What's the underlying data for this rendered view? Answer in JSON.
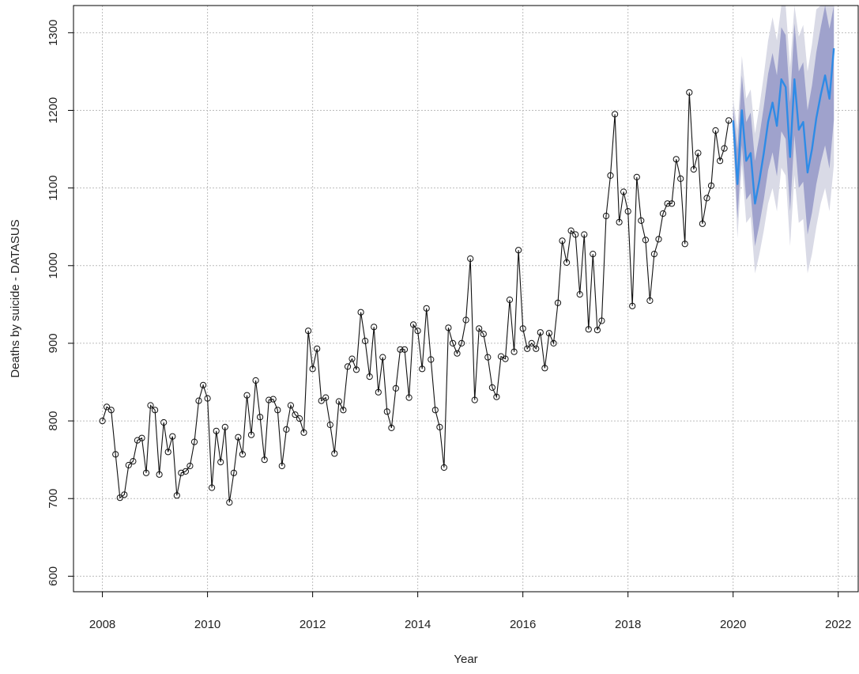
{
  "chart_data": {
    "type": "line",
    "title": "",
    "xlabel": "Year",
    "ylabel": "Deaths by suicide - DATASUS",
    "xlim": [
      2007.45,
      2022.38
    ],
    "ylim": [
      580,
      1335
    ],
    "x_ticks": [
      2008,
      2010,
      2012,
      2014,
      2016,
      2018,
      2020,
      2022
    ],
    "y_ticks": [
      600,
      700,
      800,
      900,
      1000,
      1100,
      1200,
      1300
    ],
    "x_tick_labels": [
      "2008",
      "2010",
      "2012",
      "2014",
      "2016",
      "2018",
      "2020",
      "2022"
    ],
    "y_tick_labels": [
      "600",
      "700",
      "800",
      "900",
      "1000",
      "1100",
      "1200",
      "1300"
    ],
    "grid": true,
    "legend": "none",
    "observed": {
      "start": 2008.0,
      "step": 0.08333333,
      "values": [
        800,
        818,
        814,
        757,
        701,
        705,
        743,
        748,
        775,
        778,
        733,
        820,
        814,
        731,
        798,
        760,
        780,
        704,
        733,
        735,
        742,
        773,
        826,
        846,
        829,
        714,
        787,
        747,
        792,
        695,
        733,
        779,
        757,
        833,
        782,
        852,
        805,
        750,
        827,
        828,
        814,
        742,
        789,
        820,
        808,
        803,
        785,
        916,
        867,
        893,
        826,
        830,
        795,
        758,
        825,
        814,
        870,
        880,
        866,
        940,
        903,
        857,
        921,
        837,
        882,
        812,
        791,
        842,
        892,
        892,
        830,
        924,
        916,
        867,
        945,
        879,
        814,
        792,
        740,
        920,
        900,
        887,
        900,
        930,
        1009,
        827,
        919,
        912,
        882,
        843,
        831,
        883,
        880,
        956,
        889,
        1020,
        919,
        893,
        900,
        893,
        914,
        868,
        913,
        900,
        952,
        1032,
        1004,
        1045,
        1040,
        963,
        1040,
        918,
        1015,
        917,
        929,
        1064,
        1116,
        1195,
        1056,
        1095,
        1070,
        948,
        1114,
        1058,
        1033,
        955,
        1015,
        1034,
        1067,
        1080,
        1080,
        1137,
        1112,
        1028,
        1223,
        1124,
        1145,
        1054,
        1087,
        1103,
        1174,
        1135,
        1151,
        1187
      ]
    },
    "forecast": {
      "start": 2020.0,
      "step": 0.08333333,
      "mean": [
        1187,
        1105,
        1200,
        1135,
        1145,
        1080,
        1110,
        1145,
        1185,
        1210,
        1180,
        1240,
        1230,
        1140,
        1240,
        1175,
        1185,
        1120,
        1150,
        1190,
        1220,
        1245,
        1215,
        1280
      ],
      "hi80": [
        1205,
        1150,
        1245,
        1185,
        1197,
        1135,
        1167,
        1205,
        1247,
        1274,
        1245,
        1307,
        1297,
        1210,
        1312,
        1250,
        1262,
        1200,
        1232,
        1275,
        1307,
        1335,
        1305,
        1335
      ],
      "lo80": [
        1175,
        1060,
        1155,
        1085,
        1093,
        1025,
        1053,
        1085,
        1123,
        1146,
        1115,
        1173,
        1163,
        1070,
        1168,
        1100,
        1108,
        1040,
        1068,
        1105,
        1133,
        1155,
        1125,
        1188
      ],
      "hi95": [
        1215,
        1175,
        1270,
        1215,
        1227,
        1170,
        1205,
        1245,
        1290,
        1320,
        1290,
        1335,
        1335,
        1255,
        1335,
        1295,
        1310,
        1250,
        1285,
        1330,
        1335,
        1335,
        1335,
        1335
      ],
      "lo95": [
        1165,
        1035,
        1130,
        1055,
        1063,
        990,
        1015,
        1045,
        1080,
        1100,
        1070,
        1126,
        1116,
        1025,
        1117,
        1055,
        1060,
        990,
        1015,
        1050,
        1080,
        1100,
        1070,
        1130
      ]
    },
    "colors": {
      "observed_line": "#111111",
      "forecast_line": "#2e8be6",
      "band80": "#9fa2cc",
      "band95": "#d9dae6",
      "grid": "#bcbcbc",
      "axis": "#000000"
    }
  }
}
